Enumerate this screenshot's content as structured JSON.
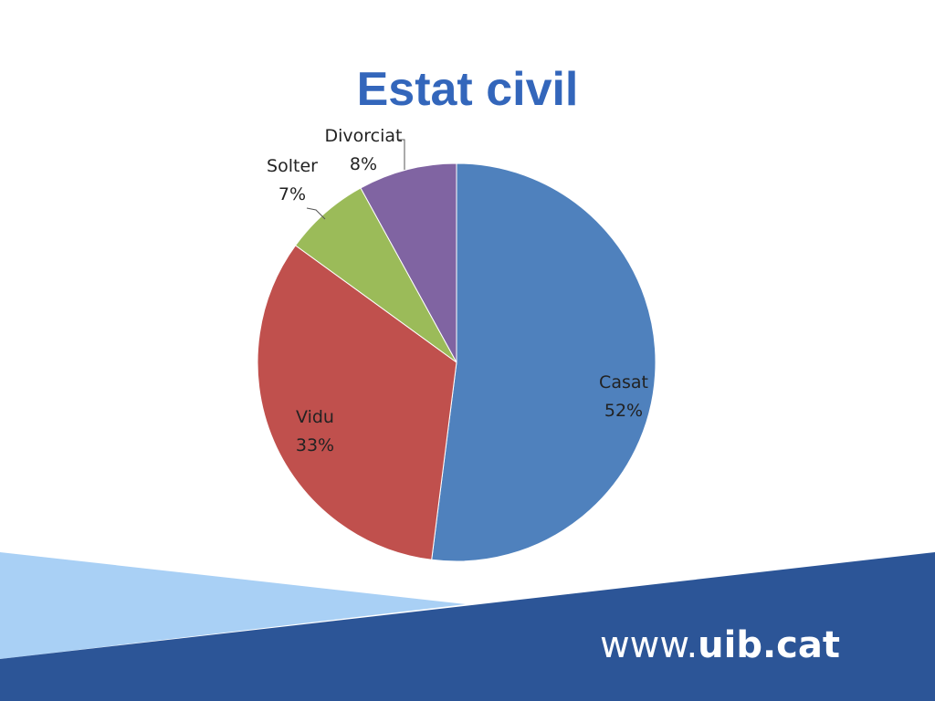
{
  "chart_data": {
    "type": "pie",
    "title": "Estat civil",
    "categories": [
      "Casat",
      "Vidu",
      "Solter",
      "Divorciat"
    ],
    "values": [
      52,
      33,
      7,
      8
    ],
    "value_labels": [
      "52%",
      "33%",
      "7%",
      "8%"
    ],
    "colors": [
      "#4f81bd",
      "#c0504d",
      "#9bbb59",
      "#8064a2"
    ]
  },
  "footer": {
    "prefix": "www.",
    "domain": "uib.cat"
  }
}
